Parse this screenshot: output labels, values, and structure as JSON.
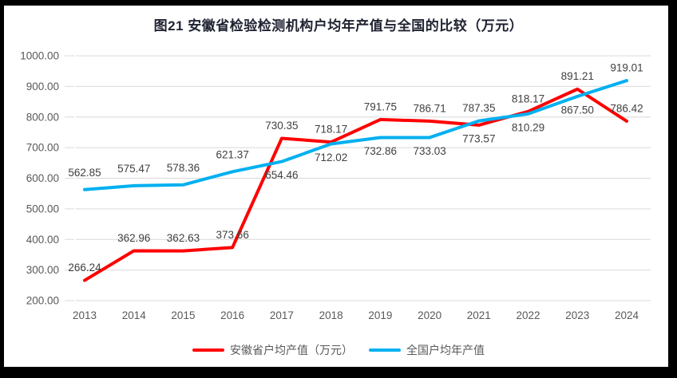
{
  "chart_data": {
    "type": "line",
    "title": "图21 安徽省检验检测机构户均年产值与全国的比较（万元）",
    "categories": [
      "2013",
      "2014",
      "2015",
      "2016",
      "2017",
      "2018",
      "2019",
      "2020",
      "2021",
      "2022",
      "2023",
      "2024"
    ],
    "series": [
      {
        "name": "安徽省户均产值（万元）",
        "color": "#FF0000",
        "values": [
          266.24,
          362.96,
          362.63,
          373.66,
          730.35,
          718.17,
          791.75,
          786.71,
          773.57,
          818.17,
          891.21,
          786.42
        ],
        "label_side": [
          "above",
          "above",
          "above",
          "above",
          "above",
          "above",
          "above",
          "above",
          "below",
          "above",
          "above",
          "above"
        ]
      },
      {
        "name": "全国户均年产值",
        "color": "#00B0F0",
        "values": [
          562.85,
          575.47,
          578.36,
          621.37,
          654.46,
          712.02,
          732.86,
          733.03,
          787.35,
          810.29,
          867.5,
          919.01
        ],
        "label_side": [
          "above",
          "above",
          "above",
          "above",
          "below",
          "below",
          "below",
          "below",
          "above",
          "below",
          "below",
          "above"
        ]
      }
    ],
    "ylim": [
      200,
      1000
    ],
    "ytick_step": 100,
    "ytick_labels": [
      "1000.00",
      "900.00",
      "800.00",
      "700.00",
      "600.00",
      "500.00",
      "400.00",
      "300.00",
      "200.00"
    ],
    "grid": true,
    "legend_position": "bottom",
    "colors": {
      "grid": "#D9D9D9",
      "axis_label": "#595959",
      "data_label": "#404040",
      "title": "#1f2230"
    }
  }
}
